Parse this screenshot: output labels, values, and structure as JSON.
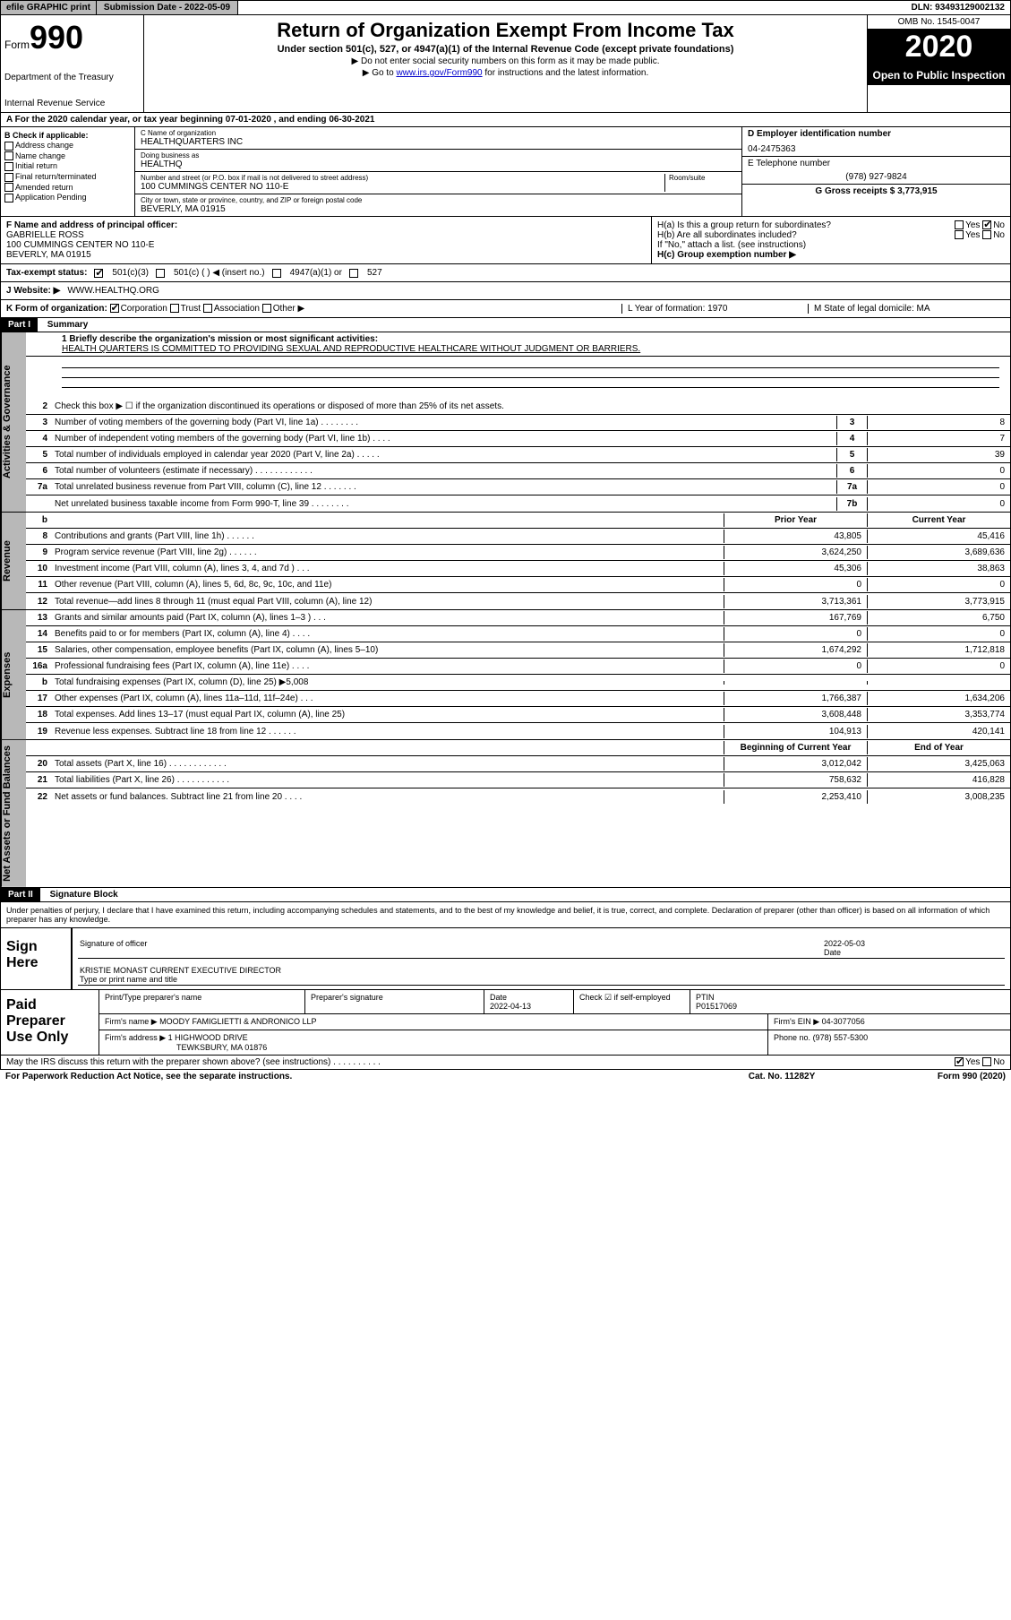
{
  "topbar": {
    "efile": "efile GRAPHIC print",
    "subdate_label": "Submission Date - 2022-05-09",
    "dln": "DLN: 93493129002132"
  },
  "header": {
    "form_prefix": "Form",
    "form_number": "990",
    "dept": "Department of the Treasury",
    "irs": "Internal Revenue Service",
    "title": "Return of Organization Exempt From Income Tax",
    "sub": "Under section 501(c), 527, or 4947(a)(1) of the Internal Revenue Code (except private foundations)",
    "note1": "▶ Do not enter social security numbers on this form as it may be made public.",
    "note2_pre": "▶ Go to ",
    "note2_link": "www.irs.gov/Form990",
    "note2_post": " for instructions and the latest information.",
    "omb": "OMB No. 1545-0047",
    "year": "2020",
    "open": "Open to Public Inspection"
  },
  "row_a": "A For the 2020 calendar year, or tax year beginning 07-01-2020    , and ending 06-30-2021",
  "col_b": {
    "hdr": "B Check if applicable:",
    "addr": "Address change",
    "name": "Name change",
    "init": "Initial return",
    "final": "Final return/terminated",
    "amend": "Amended return",
    "app": "Application Pending"
  },
  "col_c": {
    "name_lbl": "C Name of organization",
    "name": "HEALTHQUARTERS INC",
    "dba_lbl": "Doing business as",
    "dba": "HEALTHQ",
    "addr_lbl": "Number and street (or P.O. box if mail is not delivered to street address)",
    "room_lbl": "Room/suite",
    "addr": "100 CUMMINGS CENTER NO 110-E",
    "city_lbl": "City or town, state or province, country, and ZIP or foreign postal code",
    "city": "BEVERLY, MA  01915"
  },
  "col_de": {
    "d_lbl": "D Employer identification number",
    "d_val": "04-2475363",
    "e_lbl": "E Telephone number",
    "e_val": "(978) 927-9824",
    "g_lbl": "G Gross receipts $ 3,773,915"
  },
  "lower": {
    "f_lbl": "F  Name and address of principal officer:",
    "f_name": "GABRIELLE ROSS",
    "f_addr1": "100 CUMMINGS CENTER NO 110-E",
    "f_addr2": "BEVERLY, MA  01915",
    "ha": "H(a)  Is this a group return for subordinates?",
    "ha_yes": "Yes",
    "ha_no": "No",
    "hb": "H(b)  Are all subordinates included?",
    "hb_yes": "Yes",
    "hb_no": "No",
    "hb_note": "If \"No,\" attach a list. (see instructions)",
    "hc": "H(c)  Group exemption number ▶"
  },
  "tax": {
    "lbl": "Tax-exempt status:",
    "a": "501(c)(3)",
    "b": "501(c) (   ) ◀ (insert no.)",
    "c": "4947(a)(1) or",
    "d": "527"
  },
  "web": {
    "lbl": "J  Website: ▶",
    "val": "WWW.HEALTHQ.ORG"
  },
  "k": {
    "lbl": "K Form of organization:",
    "corp": "Corporation",
    "trust": "Trust",
    "assoc": "Association",
    "other": "Other ▶",
    "l": "L Year of formation: 1970",
    "m": "M State of legal domicile: MA"
  },
  "part1": {
    "hdr": "Part I",
    "title": "Summary",
    "q1": "1  Briefly describe the organization's mission or most significant activities:",
    "mission": "HEALTH QUARTERS IS COMMITTED TO PROVIDING SEXUAL AND REPRODUCTIVE HEALTHCARE WITHOUT JUDGMENT OR BARRIERS.",
    "q2": "Check this box ▶ ☐  if the organization discontinued its operations or disposed of more than 25% of its net assets.",
    "lines_gov": [
      {
        "n": "3",
        "d": "Number of voting members of the governing body (Part VI, line 1a)  .   .   .   .   .   .   .   .",
        "b": "3",
        "v": "8"
      },
      {
        "n": "4",
        "d": "Number of independent voting members of the governing body (Part VI, line 1b)  .   .   .   .",
        "b": "4",
        "v": "7"
      },
      {
        "n": "5",
        "d": "Total number of individuals employed in calendar year 2020 (Part V, line 2a)  .   .   .   .   .",
        "b": "5",
        "v": "39"
      },
      {
        "n": "6",
        "d": "Total number of volunteers (estimate if necessary)  .   .   .   .   .   .   .   .   .   .   .   .",
        "b": "6",
        "v": "0"
      },
      {
        "n": "7a",
        "d": "Total unrelated business revenue from Part VIII, column (C), line 12  .   .   .   .   .   .   .",
        "b": "7a",
        "v": "0"
      },
      {
        "n": "",
        "d": "Net unrelated business taxable income from Form 990-T, line 39   .   .   .   .   .   .   .   .",
        "b": "7b",
        "v": "0"
      }
    ],
    "col_hdr_prior": "Prior Year",
    "col_hdr_curr": "Current Year",
    "lines_rev": [
      {
        "n": "8",
        "d": "Contributions and grants (Part VIII, line 1h)  .   .   .   .   .   .",
        "p": "43,805",
        "c": "45,416"
      },
      {
        "n": "9",
        "d": "Program service revenue (Part VIII, line 2g)  .   .   .   .   .   .",
        "p": "3,624,250",
        "c": "3,689,636"
      },
      {
        "n": "10",
        "d": "Investment income (Part VIII, column (A), lines 3, 4, and 7d )  .   .   .",
        "p": "45,306",
        "c": "38,863"
      },
      {
        "n": "11",
        "d": "Other revenue (Part VIII, column (A), lines 5, 6d, 8c, 9c, 10c, and 11e)",
        "p": "0",
        "c": "0"
      },
      {
        "n": "12",
        "d": "Total revenue—add lines 8 through 11 (must equal Part VIII, column (A), line 12)",
        "p": "3,713,361",
        "c": "3,773,915"
      }
    ],
    "lines_exp": [
      {
        "n": "13",
        "d": "Grants and similar amounts paid (Part IX, column (A), lines 1–3 )  .   .   .",
        "p": "167,769",
        "c": "6,750"
      },
      {
        "n": "14",
        "d": "Benefits paid to or for members (Part IX, column (A), line 4)  .   .   .   .",
        "p": "0",
        "c": "0"
      },
      {
        "n": "15",
        "d": "Salaries, other compensation, employee benefits (Part IX, column (A), lines 5–10)",
        "p": "1,674,292",
        "c": "1,712,818"
      },
      {
        "n": "16a",
        "d": "Professional fundraising fees (Part IX, column (A), line 11e)  .   .   .   .",
        "p": "0",
        "c": "0"
      },
      {
        "n": "b",
        "d": "Total fundraising expenses (Part IX, column (D), line 25) ▶5,008",
        "p": "",
        "c": ""
      },
      {
        "n": "17",
        "d": "Other expenses (Part IX, column (A), lines 11a–11d, 11f–24e)  .   .   .",
        "p": "1,766,387",
        "c": "1,634,206"
      },
      {
        "n": "18",
        "d": "Total expenses. Add lines 13–17 (must equal Part IX, column (A), line 25)",
        "p": "3,608,448",
        "c": "3,353,774"
      },
      {
        "n": "19",
        "d": "Revenue less expenses. Subtract line 18 from line 12  .   .   .   .   .   .",
        "p": "104,913",
        "c": "420,141"
      }
    ],
    "col_hdr_begin": "Beginning of Current Year",
    "col_hdr_end": "End of Year",
    "lines_net": [
      {
        "n": "20",
        "d": "Total assets (Part X, line 16)  .   .   .   .   .   .   .   .   .   .   .   .",
        "p": "3,012,042",
        "c": "3,425,063"
      },
      {
        "n": "21",
        "d": "Total liabilities (Part X, line 26)  .   .   .   .   .   .   .   .   .   .   .",
        "p": "758,632",
        "c": "416,828"
      },
      {
        "n": "22",
        "d": "Net assets or fund balances. Subtract line 21 from line 20  .   .   .   .",
        "p": "2,253,410",
        "c": "3,008,235"
      }
    ]
  },
  "part2": {
    "hdr": "Part II",
    "title": "Signature Block",
    "perjury": "Under penalties of perjury, I declare that I have examined this return, including accompanying schedules and statements, and to the best of my knowledge and belief, it is true, correct, and complete. Declaration of preparer (other than officer) is based on all information of which preparer has any knowledge."
  },
  "sign": {
    "label": "Sign Here",
    "sig_of_officer": "Signature of officer",
    "date_lbl": "Date",
    "date": "2022-05-03",
    "name": "KRISTIE MONAST CURRENT EXECUTIVE DIRECTOR",
    "name_lbl": "Type or print name and title"
  },
  "paid": {
    "label": "Paid Preparer Use Only",
    "c1": "Print/Type preparer's name",
    "c2": "Preparer's signature",
    "c3_lbl": "Date",
    "c3": "2022-04-13",
    "c4": "Check ☑ if self-employed",
    "c5_lbl": "PTIN",
    "c5": "P01517069",
    "firm_lbl": "Firm's name      ▶",
    "firm": "MOODY FAMIGLIETTI & ANDRONICO LLP",
    "ein_lbl": "Firm's EIN ▶",
    "ein": "04-3077056",
    "addr_lbl": "Firm's address ▶",
    "addr1": "1 HIGHWOOD DRIVE",
    "addr2": "TEWKSBURY, MA  01876",
    "phone_lbl": "Phone no.",
    "phone": "(978) 557-5300"
  },
  "footer": {
    "discuss": "May the IRS discuss this return with the preparer shown above? (see instructions)   .   .   .   .   .   .   .   .   .   .",
    "yes": "Yes",
    "no": "No",
    "paperwork": "For Paperwork Reduction Act Notice, see the separate instructions.",
    "cat": "Cat. No. 11282Y",
    "form": "Form 990 (2020)"
  },
  "vtabs": {
    "gov": "Activities & Governance",
    "rev": "Revenue",
    "exp": "Expenses",
    "net": "Net Assets or Fund Balances"
  }
}
